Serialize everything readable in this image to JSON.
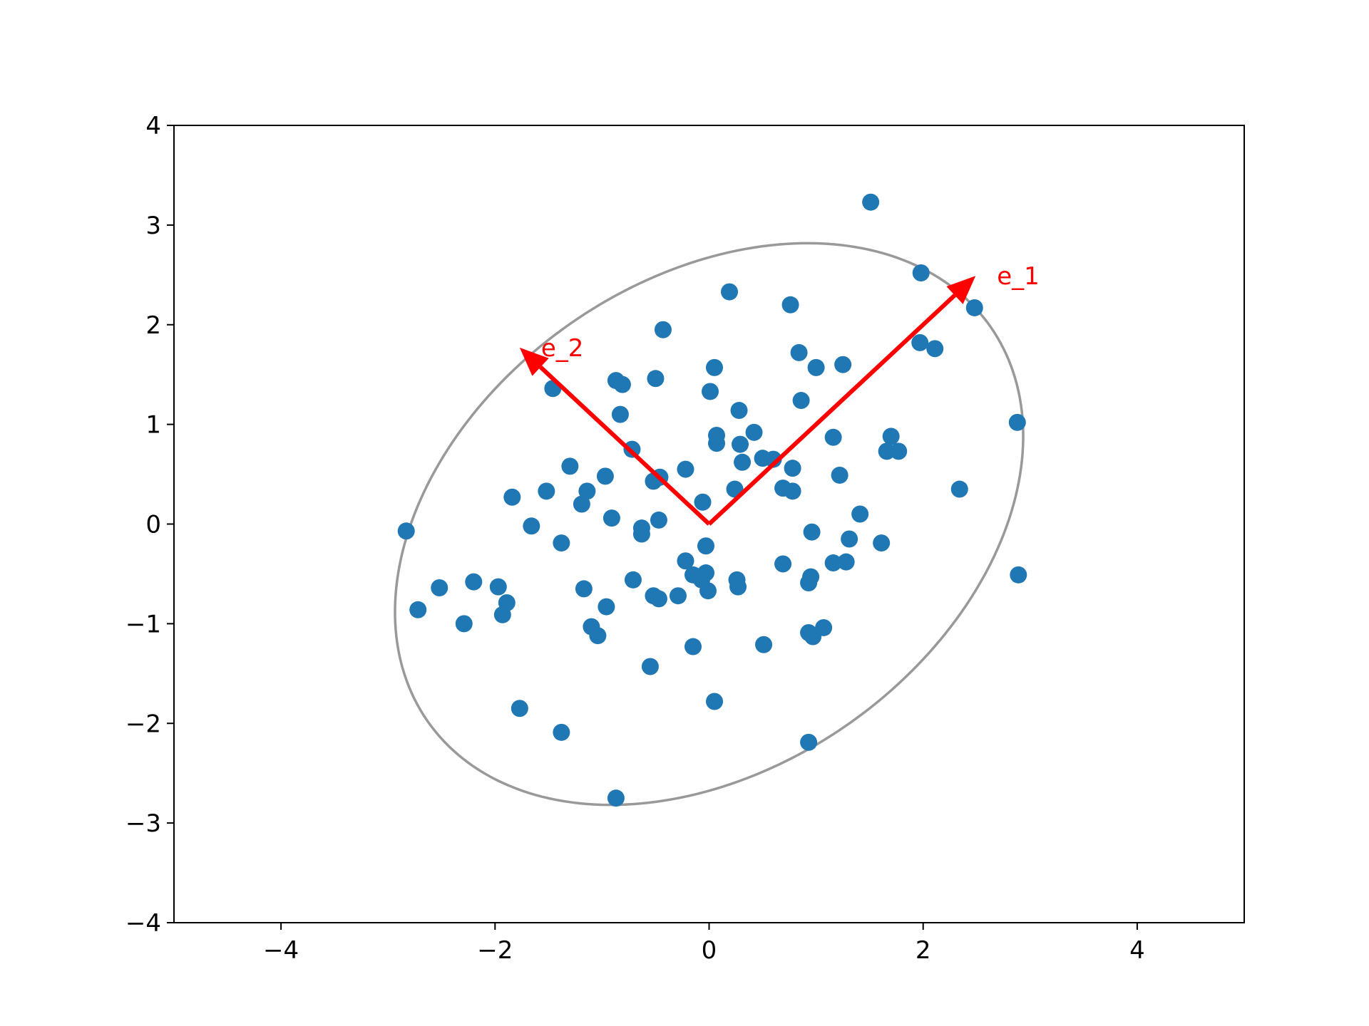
{
  "chart_data": {
    "type": "scatter",
    "xlim": [
      -5,
      5
    ],
    "ylim": [
      -4,
      4
    ],
    "xticks": [
      -4,
      -2,
      0,
      2,
      4
    ],
    "yticks": [
      -4,
      -3,
      -2,
      -1,
      0,
      1,
      2,
      3,
      4
    ],
    "xtick_labels": [
      "−4",
      "−2",
      "0",
      "2",
      "4"
    ],
    "ytick_labels": [
      "−4",
      "−3",
      "−2",
      "−1",
      "0",
      "1",
      "2",
      "3",
      "4"
    ],
    "grid": false,
    "legend": "none",
    "marker_color": "#1f77b4",
    "points": [
      [
        1.51,
        3.23
      ],
      [
        1.98,
        2.52
      ],
      [
        2.48,
        2.17
      ],
      [
        0.19,
        2.33
      ],
      [
        0.76,
        2.2
      ],
      [
        -0.43,
        1.95
      ],
      [
        1.97,
        1.82
      ],
      [
        2.11,
        1.76
      ],
      [
        0.84,
        1.72
      ],
      [
        1.0,
        1.57
      ],
      [
        1.25,
        1.6
      ],
      [
        0.05,
        1.57
      ],
      [
        -0.87,
        1.44
      ],
      [
        -0.81,
        1.4
      ],
      [
        -0.5,
        1.46
      ],
      [
        -1.46,
        1.36
      ],
      [
        0.01,
        1.33
      ],
      [
        0.86,
        1.24
      ],
      [
        0.28,
        1.14
      ],
      [
        -0.83,
        1.1
      ],
      [
        2.88,
        1.02
      ],
      [
        0.42,
        0.92
      ],
      [
        0.07,
        0.89
      ],
      [
        0.07,
        0.81
      ],
      [
        0.29,
        0.8
      ],
      [
        1.16,
        0.87
      ],
      [
        1.7,
        0.88
      ],
      [
        1.66,
        0.73
      ],
      [
        1.77,
        0.73
      ],
      [
        -0.72,
        0.75
      ],
      [
        -1.3,
        0.58
      ],
      [
        0.31,
        0.62
      ],
      [
        0.5,
        0.66
      ],
      [
        0.6,
        0.65
      ],
      [
        0.78,
        0.56
      ],
      [
        -0.22,
        0.55
      ],
      [
        -0.97,
        0.48
      ],
      [
        -0.46,
        0.47
      ],
      [
        -0.52,
        0.43
      ],
      [
        1.22,
        0.49
      ],
      [
        -1.52,
        0.33
      ],
      [
        -1.14,
        0.33
      ],
      [
        -1.84,
        0.27
      ],
      [
        0.24,
        0.35
      ],
      [
        0.69,
        0.36
      ],
      [
        0.78,
        0.33
      ],
      [
        2.34,
        0.35
      ],
      [
        -1.19,
        0.2
      ],
      [
        -0.06,
        0.22
      ],
      [
        1.41,
        0.1
      ],
      [
        -0.91,
        0.06
      ],
      [
        -0.47,
        0.04
      ],
      [
        -1.66,
        -0.02
      ],
      [
        -2.83,
        -0.07
      ],
      [
        -0.63,
        -0.04
      ],
      [
        -0.63,
        -0.1
      ],
      [
        0.96,
        -0.08
      ],
      [
        1.31,
        -0.15
      ],
      [
        1.61,
        -0.19
      ],
      [
        -1.38,
        -0.19
      ],
      [
        -0.03,
        -0.22
      ],
      [
        -0.22,
        -0.37
      ],
      [
        1.16,
        -0.39
      ],
      [
        1.28,
        -0.38
      ],
      [
        0.69,
        -0.4
      ],
      [
        2.89,
        -0.51
      ],
      [
        -0.15,
        -0.51
      ],
      [
        -0.03,
        -0.49
      ],
      [
        -0.07,
        -0.56
      ],
      [
        -0.71,
        -0.56
      ],
      [
        0.26,
        -0.56
      ],
      [
        0.95,
        -0.53
      ],
      [
        0.93,
        -0.59
      ],
      [
        -2.2,
        -0.58
      ],
      [
        -1.97,
        -0.63
      ],
      [
        -2.52,
        -0.64
      ],
      [
        -1.17,
        -0.65
      ],
      [
        -0.01,
        -0.67
      ],
      [
        0.27,
        -0.63
      ],
      [
        -0.52,
        -0.72
      ],
      [
        -0.47,
        -0.75
      ],
      [
        -0.29,
        -0.72
      ],
      [
        -1.89,
        -0.79
      ],
      [
        -0.96,
        -0.83
      ],
      [
        -2.72,
        -0.86
      ],
      [
        -1.93,
        -0.91
      ],
      [
        -1.1,
        -1.03
      ],
      [
        -1.04,
        -1.12
      ],
      [
        0.93,
        -1.09
      ],
      [
        0.97,
        -1.13
      ],
      [
        1.07,
        -1.04
      ],
      [
        -2.29,
        -1.0
      ],
      [
        0.51,
        -1.21
      ],
      [
        -0.15,
        -1.23
      ],
      [
        -0.55,
        -1.43
      ],
      [
        0.05,
        -1.78
      ],
      [
        -1.77,
        -1.85
      ],
      [
        -1.38,
        -2.09
      ],
      [
        0.93,
        -2.19
      ],
      [
        -0.87,
        -2.75
      ]
    ],
    "ellipse": {
      "center": [
        0,
        0
      ],
      "angle_deg": 41.3,
      "semi_major": 3.3,
      "semi_minor": 2.38,
      "color": "#999999"
    },
    "arrows": [
      {
        "label": "e_1",
        "from": [
          0,
          0
        ],
        "to": [
          2.49,
          2.49
        ],
        "color": "#ff0000"
      },
      {
        "label": "e_2",
        "from": [
          0,
          0
        ],
        "to": [
          -1.77,
          1.77
        ],
        "color": "#ff0000"
      }
    ]
  }
}
